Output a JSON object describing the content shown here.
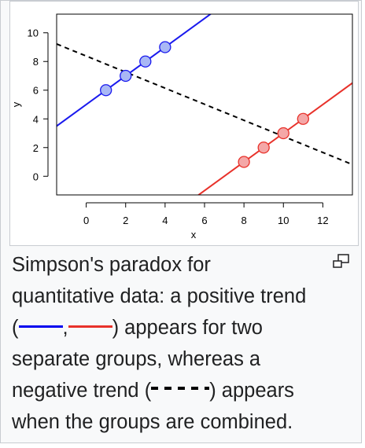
{
  "chart_data": {
    "type": "scatter",
    "xlabel": "x",
    "ylabel": "y",
    "xlim": [
      -1.5,
      13.5
    ],
    "ylim": [
      -1.3,
      11.3
    ],
    "xticks": [
      0,
      2,
      4,
      6,
      8,
      10,
      12
    ],
    "yticks": [
      0,
      2,
      4,
      6,
      8,
      10
    ],
    "grid": false,
    "series": [
      {
        "color": "#1a1aee",
        "fill": "#a9b8f5",
        "points": [
          [
            1,
            6
          ],
          [
            2,
            7
          ],
          [
            3,
            8
          ],
          [
            4,
            9
          ]
        ],
        "trend": {
          "slope": 1,
          "intercept": 5
        }
      },
      {
        "color": "#e8312a",
        "fill": "#f4a7a7",
        "points": [
          [
            8,
            1
          ],
          [
            9,
            2
          ],
          [
            10,
            3
          ],
          [
            11,
            4
          ]
        ],
        "trend": {
          "slope": 1,
          "intercept": -7
        }
      }
    ],
    "combined_trend": {
      "slope": -0.56,
      "intercept": 8.38,
      "color": "#000000",
      "style": "dashed"
    }
  },
  "caption": {
    "line1": "Simpson's paradox for",
    "line2": "quantitative data: a positive trend",
    "line3_open": "(",
    "line3_comma": ",",
    "line3_rest": ") appears for two",
    "line4": "separate groups, whereas a",
    "line5_start": "negative trend (",
    "line5_end": ") appears",
    "line6": "when the groups are combined."
  },
  "icons": {
    "magnify": "enlarge-icon"
  }
}
